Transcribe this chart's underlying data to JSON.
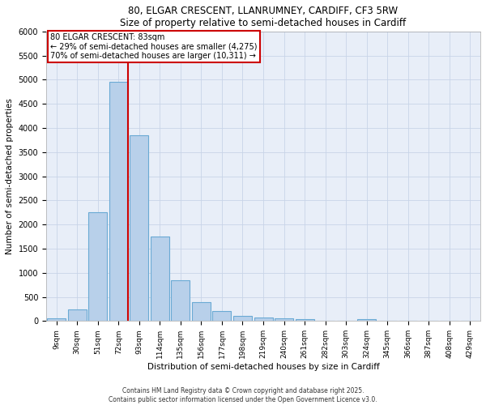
{
  "title1": "80, ELGAR CRESCENT, LLANRUMNEY, CARDIFF, CF3 5RW",
  "title2": "Size of property relative to semi-detached houses in Cardiff",
  "xlabel": "Distribution of semi-detached houses by size in Cardiff",
  "ylabel": "Number of semi-detached properties",
  "categories": [
    "9sqm",
    "30sqm",
    "51sqm",
    "72sqm",
    "93sqm",
    "114sqm",
    "135sqm",
    "156sqm",
    "177sqm",
    "198sqm",
    "219sqm",
    "240sqm",
    "261sqm",
    "282sqm",
    "303sqm",
    "324sqm",
    "345sqm",
    "366sqm",
    "387sqm",
    "408sqm",
    "429sqm"
  ],
  "values": [
    50,
    250,
    2250,
    4950,
    3850,
    1750,
    850,
    400,
    200,
    110,
    75,
    55,
    40,
    5,
    5,
    35,
    5,
    5,
    5,
    5,
    5
  ],
  "bar_color": "#b8d0ea",
  "bar_edge_color": "#6aaad4",
  "property_label": "80 ELGAR CRESCENT: 83sqm",
  "smaller_pct": "29%",
  "smaller_count": "4,275",
  "larger_pct": "70%",
  "larger_count": "10,311",
  "red_line_color": "#cc0000",
  "annotation_box_color": "#cc0000",
  "ylim": [
    0,
    6000
  ],
  "yticks": [
    0,
    500,
    1000,
    1500,
    2000,
    2500,
    3000,
    3500,
    4000,
    4500,
    5000,
    5500,
    6000
  ],
  "grid_color": "#c8d4e8",
  "bg_color": "#e8eef8",
  "footer1": "Contains HM Land Registry data © Crown copyright and database right 2025.",
  "footer2": "Contains public sector information licensed under the Open Government Licence v3.0."
}
